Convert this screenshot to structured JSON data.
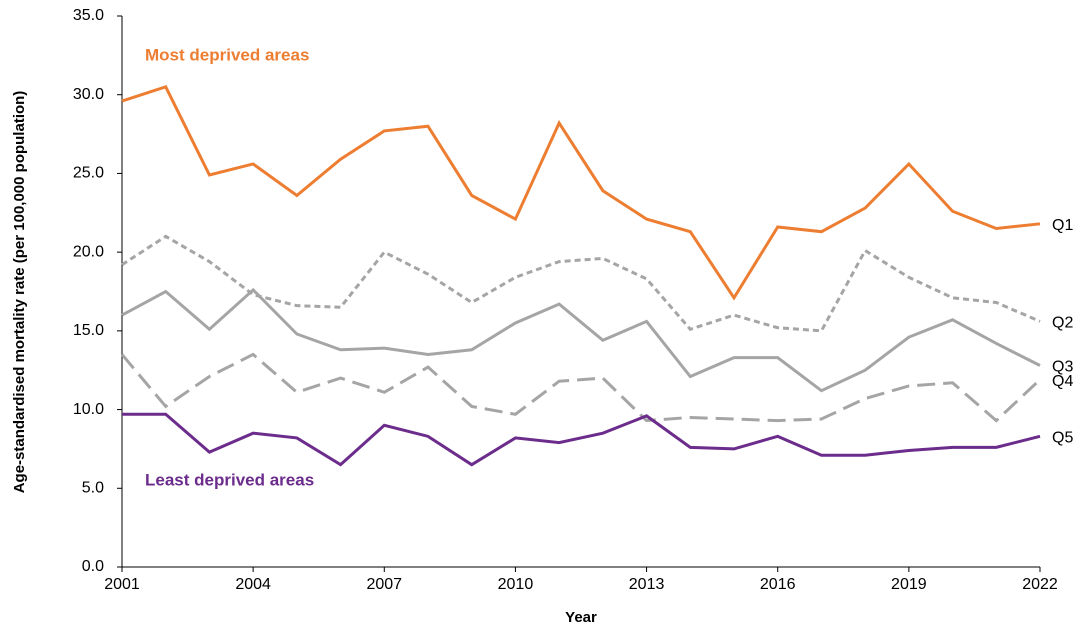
{
  "chart_data": {
    "type": "line",
    "x_label": "Year",
    "y_label": "Age-standardised mortality rate (per 100,000 population)",
    "annotations": [
      "Most deprived areas",
      "Least deprived areas"
    ],
    "x": [
      2001,
      2002,
      2003,
      2004,
      2005,
      2006,
      2007,
      2008,
      2009,
      2010,
      2011,
      2012,
      2013,
      2014,
      2015,
      2016,
      2017,
      2018,
      2019,
      2020,
      2021,
      2022
    ],
    "xlim": [
      2001,
      2022
    ],
    "xticks": [
      2001,
      2004,
      2007,
      2010,
      2013,
      2016,
      2019,
      2022
    ],
    "ylim": [
      0,
      35
    ],
    "yticks": [
      {
        "value": 0,
        "label": "0.0"
      },
      {
        "value": 5,
        "label": "5.0"
      },
      {
        "value": 10,
        "label": "10.0"
      },
      {
        "value": 15,
        "label": "15.0"
      },
      {
        "value": 20,
        "label": "20.0"
      },
      {
        "value": 25,
        "label": "25.0"
      },
      {
        "value": 30,
        "label": "30.0"
      },
      {
        "value": 35,
        "label": "35.0"
      }
    ],
    "grid": false,
    "series": [
      {
        "name": "Q1",
        "color": "#ed7d31",
        "dash": "solid",
        "values": [
          29.6,
          30.5,
          24.9,
          25.6,
          23.6,
          25.9,
          27.7,
          28.0,
          23.6,
          22.1,
          28.2,
          23.9,
          22.1,
          21.3,
          17.1,
          21.6,
          21.3,
          22.8,
          25.6,
          22.6,
          21.5,
          21.8
        ]
      },
      {
        "name": "Q2",
        "color": "#a5a5a5",
        "dash": "short",
        "values": [
          19.2,
          21.0,
          19.4,
          17.3,
          16.6,
          16.5,
          20.0,
          18.6,
          16.8,
          18.4,
          19.4,
          19.6,
          18.3,
          15.1,
          16.0,
          15.2,
          15.0,
          20.1,
          18.4,
          17.1,
          16.8,
          15.6
        ]
      },
      {
        "name": "Q3",
        "color": "#a5a5a5",
        "dash": "solid",
        "values": [
          16.0,
          17.5,
          15.1,
          17.6,
          14.8,
          13.8,
          13.9,
          13.5,
          13.8,
          15.5,
          16.7,
          14.4,
          15.6,
          12.1,
          13.3,
          13.3,
          11.2,
          12.5,
          14.6,
          15.7,
          14.2,
          12.8
        ]
      },
      {
        "name": "Q4",
        "color": "#a5a5a5",
        "dash": "long",
        "values": [
          13.5,
          10.2,
          12.1,
          13.5,
          11.1,
          12.0,
          11.1,
          12.7,
          10.2,
          9.7,
          11.8,
          12.0,
          9.3,
          9.5,
          9.4,
          9.3,
          9.4,
          10.7,
          11.5,
          11.7,
          9.3,
          11.9
        ]
      },
      {
        "name": "Q5",
        "color": "#6b2c8c",
        "dash": "solid",
        "values": [
          9.7,
          9.7,
          7.3,
          8.5,
          8.2,
          6.5,
          9.0,
          8.3,
          6.5,
          8.2,
          7.9,
          8.5,
          9.6,
          7.6,
          7.5,
          8.3,
          7.1,
          7.1,
          7.4,
          7.6,
          7.6,
          8.3
        ]
      }
    ]
  }
}
